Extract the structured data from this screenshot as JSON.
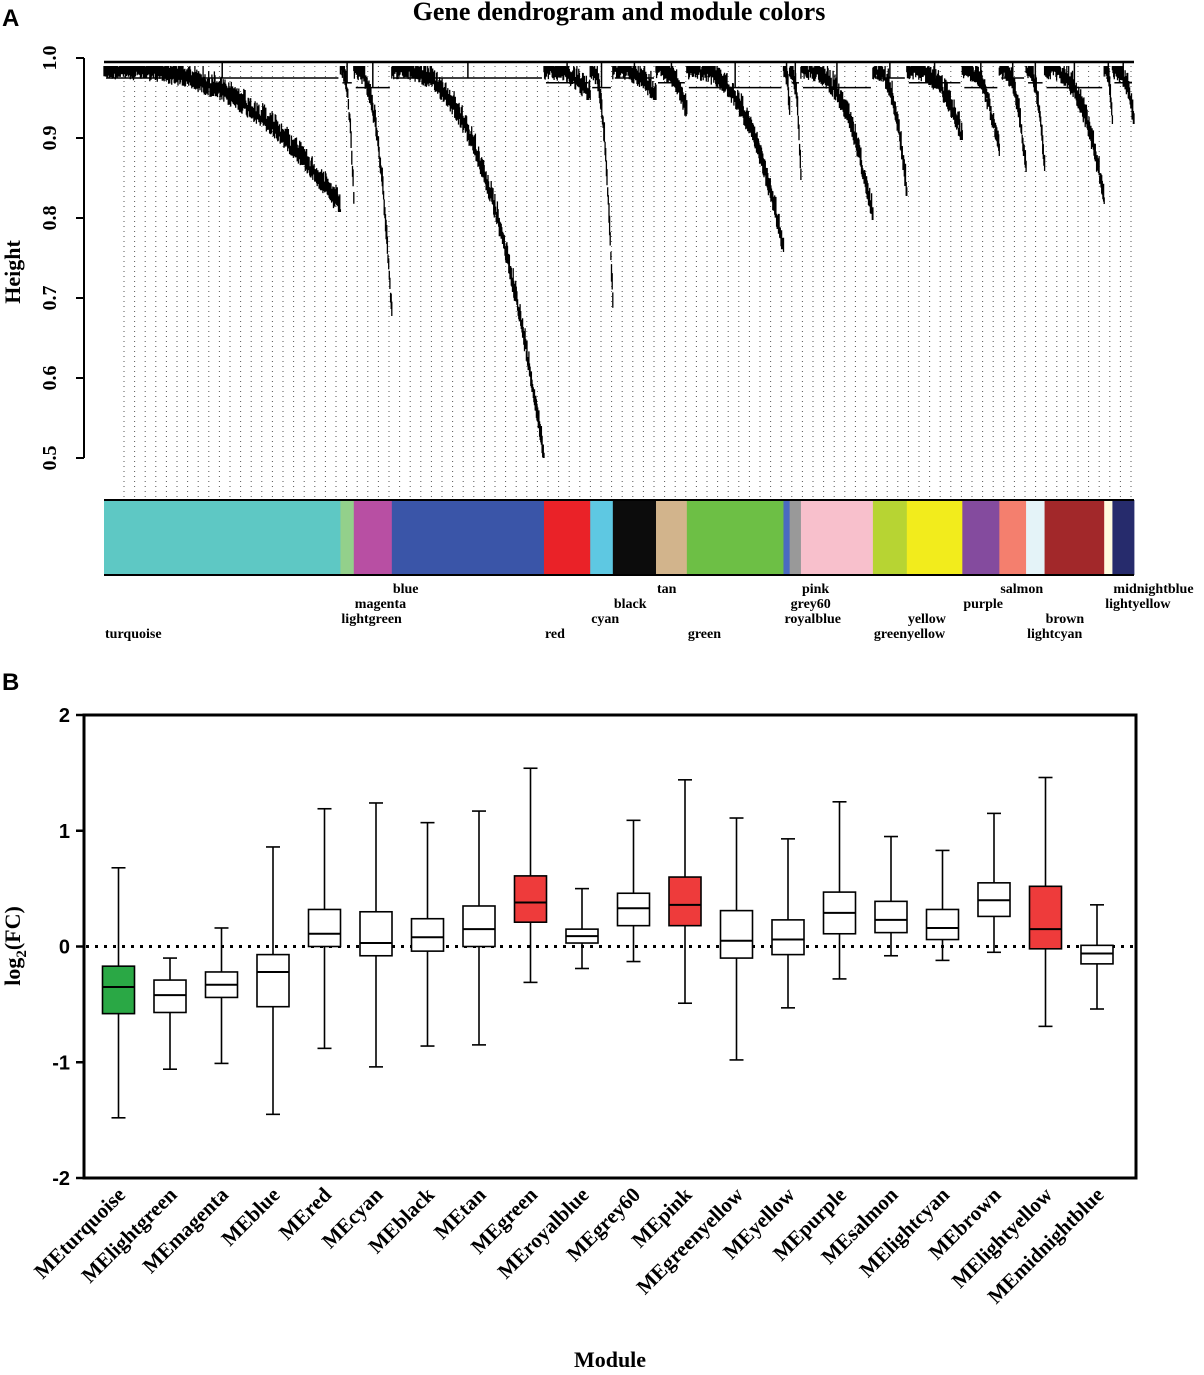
{
  "chart_data": [
    {
      "panel": "A",
      "type": "dendrogram",
      "title": "Gene dendrogram and module colors",
      "ylabel": "Height",
      "yticks": [
        "0.5",
        "0.6",
        "0.7",
        "0.8",
        "0.9",
        "1.0"
      ],
      "ylim": [
        0.5,
        1.0
      ],
      "modules": [
        {
          "name": "turquoise",
          "color": "#5ec8c4",
          "share": 23.0,
          "min_height": 0.81
        },
        {
          "name": "lightgreen",
          "color": "#93d08b",
          "share": 1.3,
          "min_height": 0.82
        },
        {
          "name": "magenta",
          "color": "#b84fa3",
          "share": 3.7,
          "min_height": 0.68
        },
        {
          "name": "blue",
          "color": "#3a55a8",
          "share": 14.8,
          "min_height": 0.5
        },
        {
          "name": "red",
          "color": "#ea2228",
          "share": 4.5,
          "min_height": 0.95
        },
        {
          "name": "cyan",
          "color": "#5ec8e2",
          "share": 2.2,
          "min_height": 0.69
        },
        {
          "name": "black",
          "color": "#0c0c0c",
          "share": 4.2,
          "min_height": 0.95
        },
        {
          "name": "tan",
          "color": "#d2b48c",
          "share": 3.0,
          "min_height": 0.93
        },
        {
          "name": "green",
          "color": "#6dbf45",
          "share": 9.4,
          "min_height": 0.76
        },
        {
          "name": "royalblue",
          "color": "#4a6ac0",
          "share": 0.6,
          "min_height": 0.93
        },
        {
          "name": "grey60",
          "color": "#999999",
          "share": 1.1,
          "min_height": 0.85
        },
        {
          "name": "pink",
          "color": "#f8c0cc",
          "share": 7.0,
          "min_height": 0.8
        },
        {
          "name": "greenyellow",
          "color": "#b7d433",
          "share": 3.3,
          "min_height": 0.83
        },
        {
          "name": "yellow",
          "color": "#f2ec1c",
          "share": 5.4,
          "min_height": 0.9
        },
        {
          "name": "purple",
          "color": "#844b9e",
          "share": 3.6,
          "min_height": 0.88
        },
        {
          "name": "salmon",
          "color": "#f47f6e",
          "share": 2.6,
          "min_height": 0.86
        },
        {
          "name": "lightcyan",
          "color": "#e4f3f8",
          "share": 1.8,
          "min_height": 0.86
        },
        {
          "name": "brown",
          "color": "#a2282a",
          "share": 5.8,
          "min_height": 0.82
        },
        {
          "name": "lightyellow",
          "color": "#fffbdf",
          "share": 0.8,
          "min_height": 0.92
        },
        {
          "name": "midnightblue",
          "color": "#262b6c",
          "share": 2.1,
          "min_height": 0.92
        }
      ],
      "module_label_rows": {
        "turquoise": 3,
        "lightgreen": 2,
        "magenta": 1,
        "blue": 0,
        "red": 3,
        "cyan": 2,
        "black": 1,
        "tan": 0,
        "green": 3,
        "royalblue": 2,
        "grey60": 1,
        "pink": 0,
        "greenyellow": 3,
        "yellow": 2,
        "purple": 1,
        "salmon": 0,
        "lightcyan": 3,
        "brown": 2,
        "lightyellow": 1,
        "midnightblue": 0
      }
    },
    {
      "panel": "B",
      "type": "boxplot",
      "xlabel": "Module",
      "ylabel": "log2(FC)",
      "ylabel_base": "log",
      "ylabel_sub": "2",
      "ylabel_rest": "(FC)",
      "ylim": [
        -2,
        2
      ],
      "yticks": [
        "-2",
        "-1",
        "0",
        "1",
        "2"
      ],
      "reference_line": 0,
      "boxes": [
        {
          "name": "MEturquoise",
          "min": -1.48,
          "q1": -0.58,
          "median": -0.35,
          "q3": -0.17,
          "max": 0.68,
          "fill": "#2aa845"
        },
        {
          "name": "MElightgreen",
          "min": -1.06,
          "q1": -0.57,
          "median": -0.42,
          "q3": -0.29,
          "max": -0.1,
          "fill": "#ffffff"
        },
        {
          "name": "MEmagenta",
          "min": -1.01,
          "q1": -0.44,
          "median": -0.33,
          "q3": -0.22,
          "max": 0.16,
          "fill": "#ffffff"
        },
        {
          "name": "MEblue",
          "min": -1.45,
          "q1": -0.52,
          "median": -0.22,
          "q3": -0.07,
          "max": 0.86,
          "fill": "#ffffff"
        },
        {
          "name": "MEred",
          "min": -0.88,
          "q1": 0.0,
          "median": 0.11,
          "q3": 0.32,
          "max": 1.19,
          "fill": "#ffffff"
        },
        {
          "name": "MEcyan",
          "min": -1.04,
          "q1": -0.08,
          "median": 0.03,
          "q3": 0.3,
          "max": 1.24,
          "fill": "#ffffff"
        },
        {
          "name": "MEblack",
          "min": -0.86,
          "q1": -0.04,
          "median": 0.08,
          "q3": 0.24,
          "max": 1.07,
          "fill": "#ffffff"
        },
        {
          "name": "MEtan",
          "min": -0.85,
          "q1": 0.0,
          "median": 0.15,
          "q3": 0.35,
          "max": 1.17,
          "fill": "#ffffff"
        },
        {
          "name": "MEgreen",
          "min": -0.31,
          "q1": 0.21,
          "median": 0.38,
          "q3": 0.61,
          "max": 1.54,
          "fill": "#ee3b3b"
        },
        {
          "name": "MEroyalblue",
          "min": -0.19,
          "q1": 0.03,
          "median": 0.09,
          "q3": 0.15,
          "max": 0.5,
          "fill": "#ffffff"
        },
        {
          "name": "MEgrey60",
          "min": -0.13,
          "q1": 0.18,
          "median": 0.33,
          "q3": 0.46,
          "max": 1.09,
          "fill": "#ffffff"
        },
        {
          "name": "MEpink",
          "min": -0.49,
          "q1": 0.18,
          "median": 0.36,
          "q3": 0.6,
          "max": 1.44,
          "fill": "#ee3b3b"
        },
        {
          "name": "MEgreenyellow",
          "min": -0.98,
          "q1": -0.1,
          "median": 0.05,
          "q3": 0.31,
          "max": 1.11,
          "fill": "#ffffff"
        },
        {
          "name": "MEyellow",
          "min": -0.53,
          "q1": -0.07,
          "median": 0.06,
          "q3": 0.23,
          "max": 0.93,
          "fill": "#ffffff"
        },
        {
          "name": "MEpurple",
          "min": -0.28,
          "q1": 0.11,
          "median": 0.29,
          "q3": 0.47,
          "max": 1.25,
          "fill": "#ffffff"
        },
        {
          "name": "MEsalmon",
          "min": -0.08,
          "q1": 0.12,
          "median": 0.23,
          "q3": 0.39,
          "max": 0.95,
          "fill": "#ffffff"
        },
        {
          "name": "MElightcyan",
          "min": -0.12,
          "q1": 0.06,
          "median": 0.16,
          "q3": 0.32,
          "max": 0.83,
          "fill": "#ffffff"
        },
        {
          "name": "MEbrown",
          "min": -0.05,
          "q1": 0.26,
          "median": 0.4,
          "q3": 0.55,
          "max": 1.15,
          "fill": "#ffffff"
        },
        {
          "name": "MElightyellow",
          "min": -0.69,
          "q1": -0.02,
          "median": 0.15,
          "q3": 0.52,
          "max": 1.46,
          "fill": "#ee3b3b"
        },
        {
          "name": "MEmidnightblue",
          "min": -0.54,
          "q1": -0.15,
          "median": -0.06,
          "q3": 0.01,
          "max": 0.36,
          "fill": "#ffffff"
        }
      ]
    }
  ]
}
